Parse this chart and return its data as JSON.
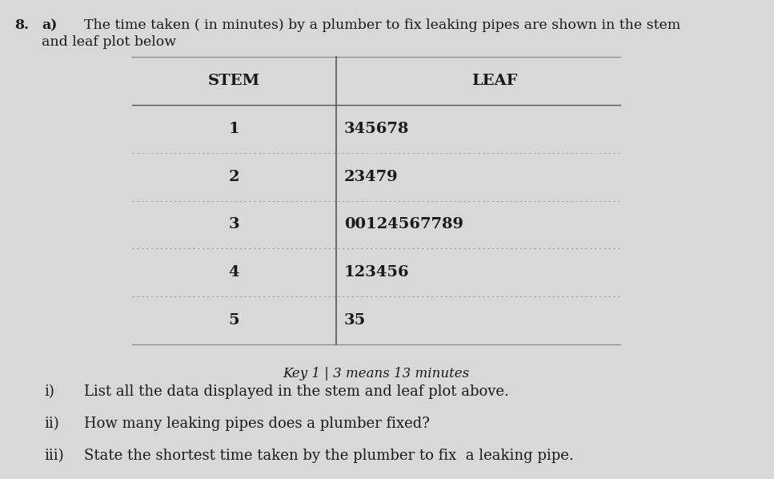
{
  "title_number": "8.",
  "title_part": "a)",
  "title_text_line1": "The time taken ( in minutes) by a plumber to fix leaking pipes are shown in the stem",
  "title_text_line2": "and leaf plot below",
  "stem_header": "STEM",
  "leaf_header": "LEAF",
  "stems": [
    "1",
    "2",
    "3",
    "4",
    "5"
  ],
  "leaves": [
    "345678",
    "23479",
    "00124567789",
    "123456",
    "35"
  ],
  "key_text": "Key 1 | 3 means 13 minutes",
  "questions": [
    {
      "label": "i)",
      "text": "List all the data displayed in the stem and leaf plot above."
    },
    {
      "label": "ii)",
      "text": "How many leaking pipes does a plumber fixed?"
    },
    {
      "label": "iii)",
      "text": "State the shortest time taken by the plumber to fix  a leaking pipe."
    }
  ],
  "bg_color": "#d8d8d8",
  "text_color": "#1a1a1a",
  "font_size_title": 12.5,
  "font_size_table": 13,
  "font_size_key": 12,
  "font_size_questions": 13
}
